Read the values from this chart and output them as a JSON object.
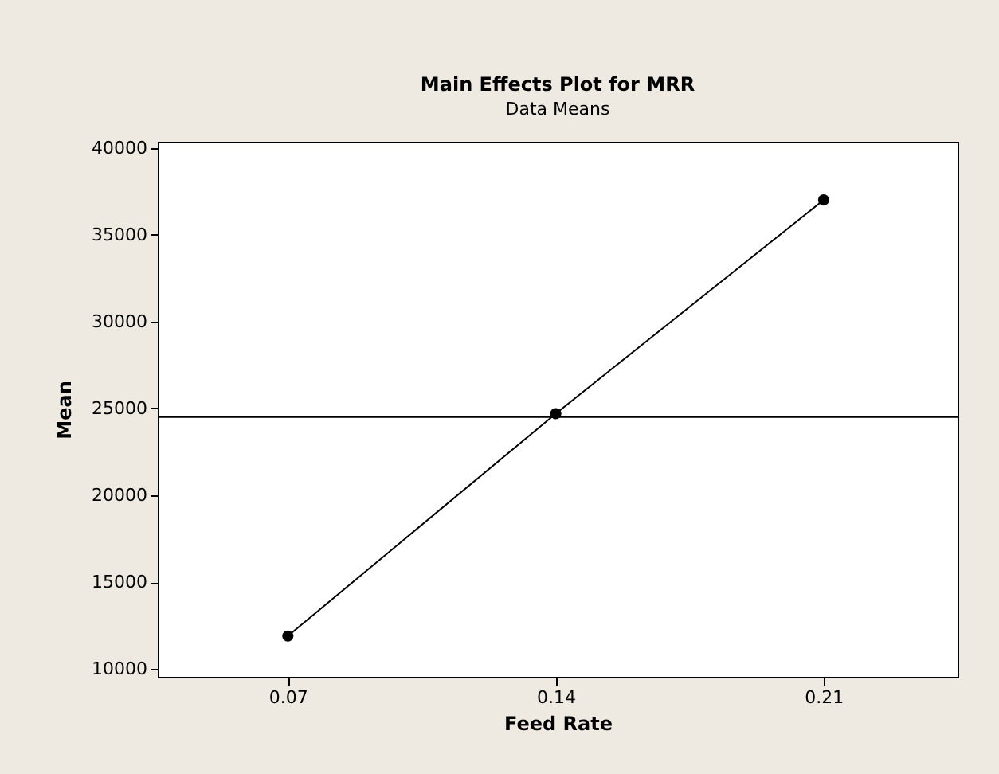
{
  "chart_data": {
    "type": "line",
    "title": "Main Effects Plot for MRR",
    "subtitle": "Data Means",
    "xlabel": "Feed Rate",
    "ylabel": "Mean",
    "x": [
      0.07,
      0.14,
      0.21
    ],
    "series": [
      {
        "color": "#000000",
        "values": [
          11900,
          24700,
          37000
        ]
      }
    ],
    "xlim": [
      0.036,
      0.245
    ],
    "xticks": [
      0.07,
      0.14,
      0.21
    ],
    "ylim": [
      9550,
      40350
    ],
    "yticks": [
      10000,
      15000,
      20000,
      25000,
      30000,
      35000,
      40000
    ],
    "ref_lines": [
      {
        "axis": "y",
        "value": 24500,
        "color": "#000000"
      }
    ],
    "marker": "circle",
    "line_style": "solid",
    "grid": false
  }
}
